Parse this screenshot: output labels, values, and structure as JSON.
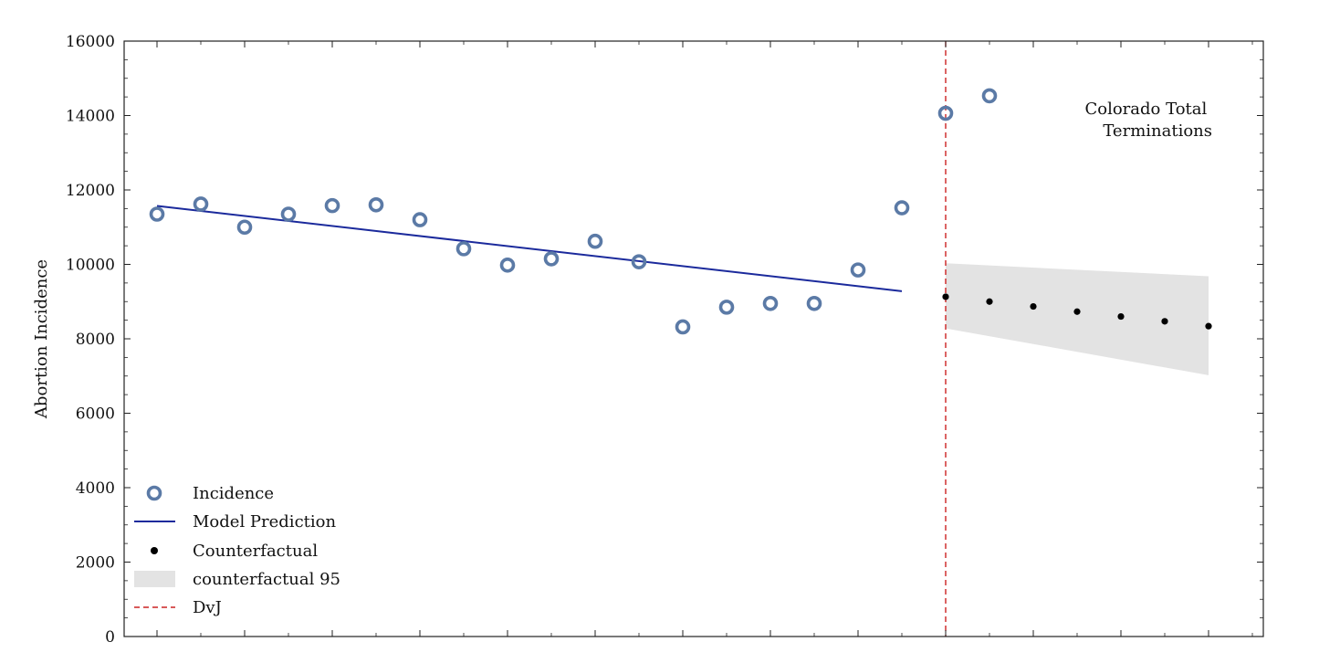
{
  "chart_data": {
    "type": "scatter",
    "title": "",
    "xlabel": "",
    "ylabel": "Abortion Incidence",
    "ylim": [
      0,
      16000
    ],
    "y_ticks": [
      0,
      2000,
      4000,
      6000,
      8000,
      10000,
      12000,
      14000,
      16000
    ],
    "x_range": [
      -0.75,
      25.25
    ],
    "x_labels_shown": false,
    "grid": false,
    "annotation": [
      "Colorado Total",
      "Terminations"
    ],
    "legend": {
      "placement": "lower-left",
      "entries": [
        "Incidence",
        "Model Prediction",
        "Counterfactual",
        "counterfactual 95",
        "DvJ"
      ]
    },
    "series": [
      {
        "name": "Incidence",
        "kind": "scatter-ring",
        "color": "#5b7aa6",
        "x": [
          0,
          1,
          2,
          3,
          4,
          5,
          6,
          7,
          8,
          9,
          10,
          11,
          12,
          13,
          14,
          15,
          16,
          17,
          18,
          19
        ],
        "y": [
          11350,
          11620,
          11000,
          11350,
          11580,
          11600,
          11200,
          10420,
          9980,
          10150,
          10620,
          10070,
          8320,
          8850,
          8950,
          8950,
          9850,
          11520,
          14060,
          14530
        ]
      },
      {
        "name": "Model Prediction",
        "kind": "line",
        "color": "#1b2a9c",
        "x": [
          0,
          17
        ],
        "y": [
          11570,
          9280
        ]
      },
      {
        "name": "Counterfactual",
        "kind": "scatter-dot",
        "color": "#000000",
        "x": [
          18,
          19,
          20,
          21,
          22,
          23,
          24
        ],
        "y": [
          9130,
          9000,
          8870,
          8730,
          8600,
          8470,
          8340
        ]
      },
      {
        "name": "counterfactual 95",
        "kind": "band",
        "color": "#e3e3e3",
        "x": [
          18,
          24
        ],
        "lower": [
          8280,
          7020
        ],
        "upper": [
          10030,
          9680
        ]
      },
      {
        "name": "DvJ",
        "kind": "vline",
        "color": "#cc2222",
        "x": 18
      }
    ]
  }
}
